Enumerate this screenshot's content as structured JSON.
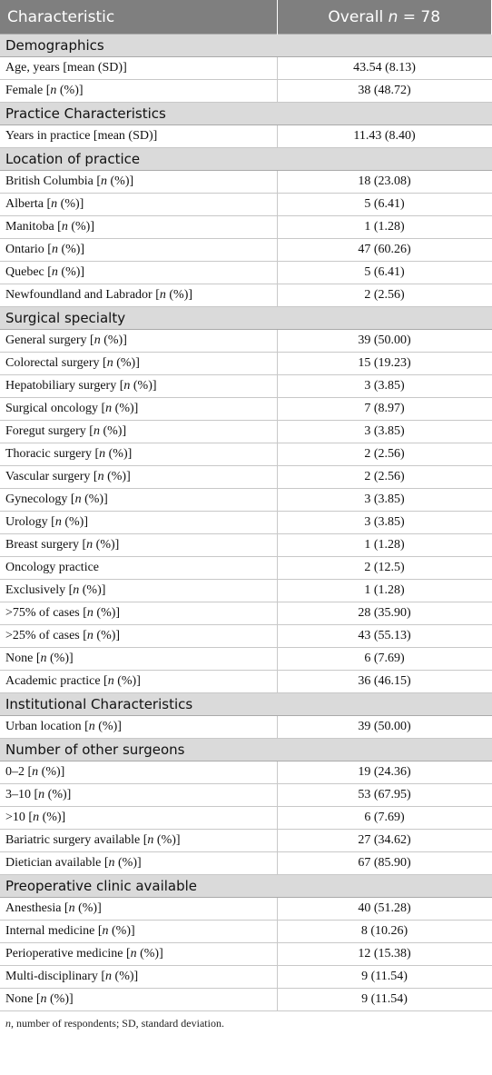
{
  "table": {
    "header": [
      "Characteristic",
      "Overall n = 78"
    ],
    "sections": [
      {
        "title": "Demographics",
        "rows": [
          [
            "Age, years [mean (SD)]",
            "43.54 (8.13)"
          ],
          [
            "Female [n (%)]",
            "38 (48.72)"
          ]
        ]
      },
      {
        "title": "Practice Characteristics",
        "rows": [
          [
            "Years in practice [mean (SD)]",
            "11.43 (8.40)"
          ]
        ]
      },
      {
        "title": "Location of practice",
        "rows": [
          [
            "British Columbia [n (%)]",
            "18 (23.08)"
          ],
          [
            "Alberta [n (%)]",
            "5 (6.41)"
          ],
          [
            "Manitoba [n (%)]",
            "1 (1.28)"
          ],
          [
            "Ontario [n (%)]",
            "47 (60.26)"
          ],
          [
            "Quebec [n (%)]",
            "5 (6.41)"
          ],
          [
            "Newfoundland and Labrador [n (%)]",
            "2 (2.56)"
          ]
        ]
      },
      {
        "title": "Surgical specialty",
        "rows": [
          [
            "General surgery [n (%)]",
            "39 (50.00)"
          ],
          [
            "Colorectal surgery [n (%)]",
            "15 (19.23)"
          ],
          [
            "Hepatobiliary surgery [n (%)]",
            "3 (3.85)"
          ],
          [
            "Surgical oncology [n (%)]",
            "7 (8.97)"
          ],
          [
            "Foregut surgery [n (%)]",
            "3 (3.85)"
          ],
          [
            "Thoracic surgery [n (%)]",
            "2 (2.56)"
          ],
          [
            "Vascular surgery [n (%)]",
            "2 (2.56)"
          ],
          [
            "Gynecology [n (%)]",
            "3 (3.85)"
          ],
          [
            "Urology [n (%)]",
            "3 (3.85)"
          ],
          [
            "Breast surgery [n (%)]",
            "1 (1.28)"
          ],
          [
            "Oncology practice",
            "2 (12.5)"
          ],
          [
            "Exclusively [n (%)]",
            "1 (1.28)"
          ],
          [
            ">75% of cases [n (%)]",
            "28 (35.90)"
          ],
          [
            ">25% of cases [n (%)]",
            "43 (55.13)"
          ],
          [
            "None [n (%)]",
            "6 (7.69)"
          ],
          [
            "Academic practice [n (%)]",
            "36 (46.15)"
          ]
        ]
      },
      {
        "title": "Institutional Characteristics",
        "rows": [
          [
            "Urban location [n (%)]",
            "39 (50.00)"
          ]
        ]
      },
      {
        "title": "Number of other surgeons",
        "rows": [
          [
            "0–2 [n (%)]",
            "19 (24.36)"
          ],
          [
            "3–10 [n (%)]",
            "53 (67.95)"
          ],
          [
            ">10 [n (%)]",
            "6 (7.69)"
          ],
          [
            "Bariatric surgery available [n (%)]",
            "27 (34.62)"
          ],
          [
            "Dietician available [n (%)]",
            "67 (85.90)"
          ]
        ]
      },
      {
        "title": "Preoperative clinic available",
        "rows": [
          [
            "Anesthesia [n (%)]",
            "40 (51.28)"
          ],
          [
            "Internal medicine [n (%)]",
            "8 (10.26)"
          ],
          [
            "Perioperative medicine [n (%)]",
            "12 (15.38)"
          ],
          [
            "Multi-disciplinary [n (%)]",
            "9 (11.54)"
          ],
          [
            "None [n (%)]",
            "9 (11.54)"
          ]
        ]
      }
    ],
    "footnote": "n, number of respondents; SD, standard deviation."
  }
}
